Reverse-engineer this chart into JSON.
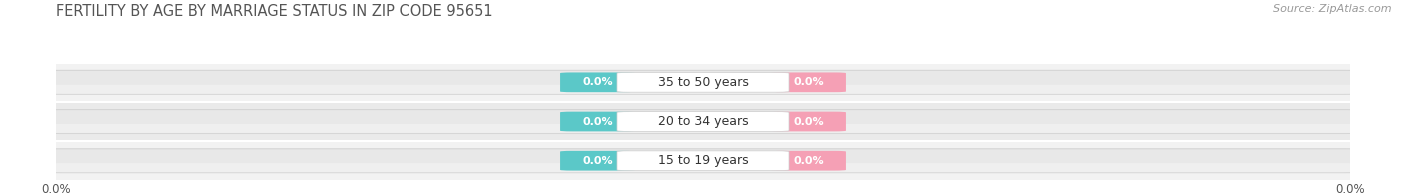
{
  "title": "FERTILITY BY AGE BY MARRIAGE STATUS IN ZIP CODE 95651",
  "source": "Source: ZipAtlas.com",
  "categories": [
    "15 to 19 years",
    "20 to 34 years",
    "35 to 50 years"
  ],
  "married_values": [
    0.0,
    0.0,
    0.0
  ],
  "unmarried_values": [
    0.0,
    0.0,
    0.0
  ],
  "married_color": "#5BC8C8",
  "unmarried_color": "#F5A0B5",
  "bar_bg_light": "#EFEFEF",
  "bar_bg_dark": "#E5E5E5",
  "xlim_left": -1.0,
  "xlim_right": 1.0,
  "title_fontsize": 10.5,
  "source_fontsize": 8,
  "label_fontsize": 9,
  "pill_fontsize": 8,
  "legend_fontsize": 9,
  "tick_fontsize": 8.5,
  "background_color": "#FFFFFF",
  "fig_width": 14.06,
  "fig_height": 1.96
}
